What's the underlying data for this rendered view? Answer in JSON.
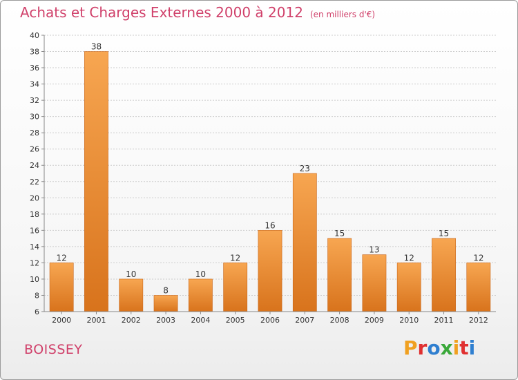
{
  "title": "Achats et Charges Externes 2000 à 2012",
  "subtitle": "(en milliers d'€)",
  "commune": "BOISSEY",
  "logo": {
    "text": "Proxiti",
    "colors": [
      "#f0a020",
      "#e03030",
      "#2f7fd0",
      "#3aa83a",
      "#f0a020",
      "#e03030",
      "#2f7fd0"
    ]
  },
  "colors": {
    "bar_top": "#f7a651",
    "bar_bottom": "#d8731c",
    "bar_edge": "#c8661a",
    "text": "#333333",
    "grid": "#cccccc",
    "accent": "#d0406a"
  },
  "chart_data": {
    "type": "bar",
    "categories": [
      "2000",
      "2001",
      "2002",
      "2003",
      "2004",
      "2005",
      "2006",
      "2007",
      "2008",
      "2009",
      "2010",
      "2011",
      "2012"
    ],
    "values": [
      12,
      38,
      10,
      8,
      10,
      12,
      16,
      23,
      15,
      13,
      12,
      15,
      12
    ],
    "ylim": [
      6,
      40
    ],
    "yticks": [
      6,
      8,
      10,
      12,
      14,
      16,
      18,
      20,
      22,
      24,
      26,
      28,
      30,
      32,
      34,
      36,
      38,
      40
    ],
    "grid": true,
    "data_labels": true
  }
}
